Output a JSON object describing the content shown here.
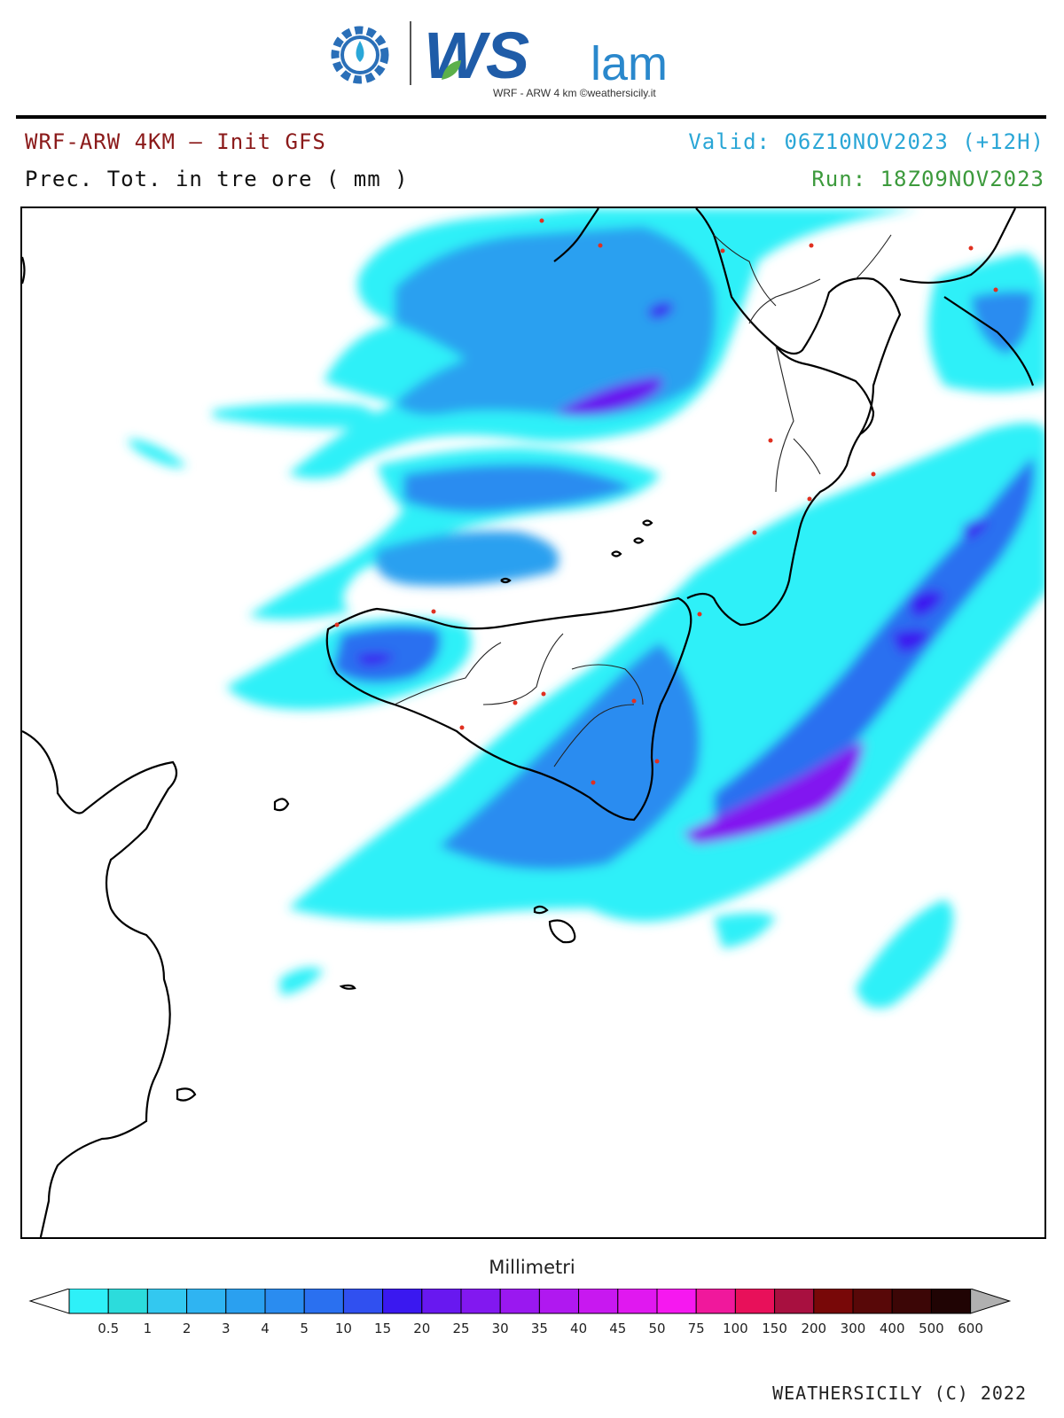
{
  "logo": {
    "brand_big": "WS",
    "brand_small": "lam",
    "tagline": "WRF - ARW 4 km ©weathersicily.it"
  },
  "header": {
    "model": "WRF-ARW 4KM — Init GFS",
    "field": "Prec. Tot. in tre ore ( mm )",
    "valid": "Valid: 06Z10NOV2023 (+12H)",
    "run": "Run: 18Z09NOV2023"
  },
  "legend": {
    "title": "Millimetri",
    "thresholds": [
      "0.5",
      "1",
      "2",
      "3",
      "4",
      "5",
      "10",
      "15",
      "20",
      "25",
      "30",
      "35",
      "40",
      "45",
      "50",
      "75",
      "100",
      "150",
      "200",
      "300",
      "400",
      "500",
      "600"
    ],
    "colors": [
      "#2ef0f8",
      "#2cdcdc",
      "#33c8f0",
      "#2fb4f2",
      "#2aa0f0",
      "#2a8cf0",
      "#2a70f0",
      "#3050f0",
      "#3a18f0",
      "#6818f0",
      "#8218f0",
      "#9a18f0",
      "#b018f0",
      "#c818f0",
      "#e018f0",
      "#f618f0",
      "#f0189c",
      "#e8105a",
      "#a81040",
      "#780808",
      "#580808",
      "#3c0606",
      "#200404"
    ],
    "under_color": "#ffffff",
    "over_color": "#b0b0b0"
  },
  "map": {
    "ocean_color": "#ffffff",
    "coast_color": "#000000",
    "city_color": "#e03020"
  },
  "footer": {
    "credit": "WEATHERSICILY (C) 2022"
  }
}
